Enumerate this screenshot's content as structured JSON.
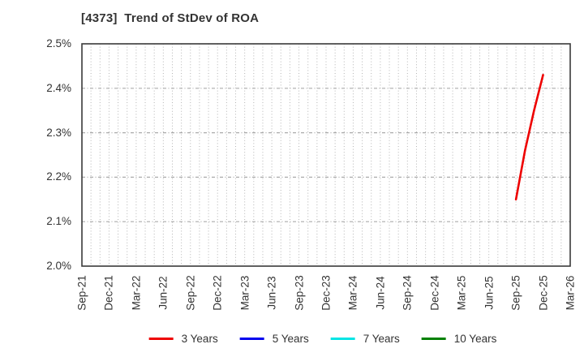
{
  "chart_data": {
    "type": "line",
    "title": "[4373]  Trend of StDev of ROA",
    "xlabel": "",
    "ylabel": "",
    "y_unit": "%",
    "ylim": [
      2.0,
      2.5
    ],
    "y_tick_step": 0.1,
    "y_tick_labels": [
      "2.0%",
      "2.1%",
      "2.2%",
      "2.3%",
      "2.4%",
      "2.5%"
    ],
    "x_tick_labels": [
      "Sep-21",
      "Dec-21",
      "Mar-22",
      "Jun-22",
      "Sep-22",
      "Dec-22",
      "Mar-23",
      "Jun-23",
      "Sep-23",
      "Dec-23",
      "Mar-24",
      "Jun-24",
      "Sep-24",
      "Dec-24",
      "Mar-25",
      "Jun-25",
      "Sep-25",
      "Dec-25",
      "Mar-26"
    ],
    "x_months_total": 54,
    "x_months_per_tick": 3,
    "grid": {
      "vertical": "monthly dotted",
      "horizontal": "every 0.1% dash-dot",
      "color": "#b4b4b4"
    },
    "border_color": "#3a3a3a",
    "legend_position": "bottom",
    "series": [
      {
        "name": "3 Years",
        "color": "#ee0000",
        "x_months": [
          48,
          49,
          50,
          51
        ],
        "values_pct": [
          2.15,
          2.26,
          2.35,
          2.43
        ]
      },
      {
        "name": "5 Years",
        "color": "#0000ee",
        "x_months": [],
        "values_pct": []
      },
      {
        "name": "7 Years",
        "color": "#00e5e5",
        "x_months": [],
        "values_pct": []
      },
      {
        "name": "10 Years",
        "color": "#008000",
        "x_months": [],
        "values_pct": []
      }
    ]
  }
}
